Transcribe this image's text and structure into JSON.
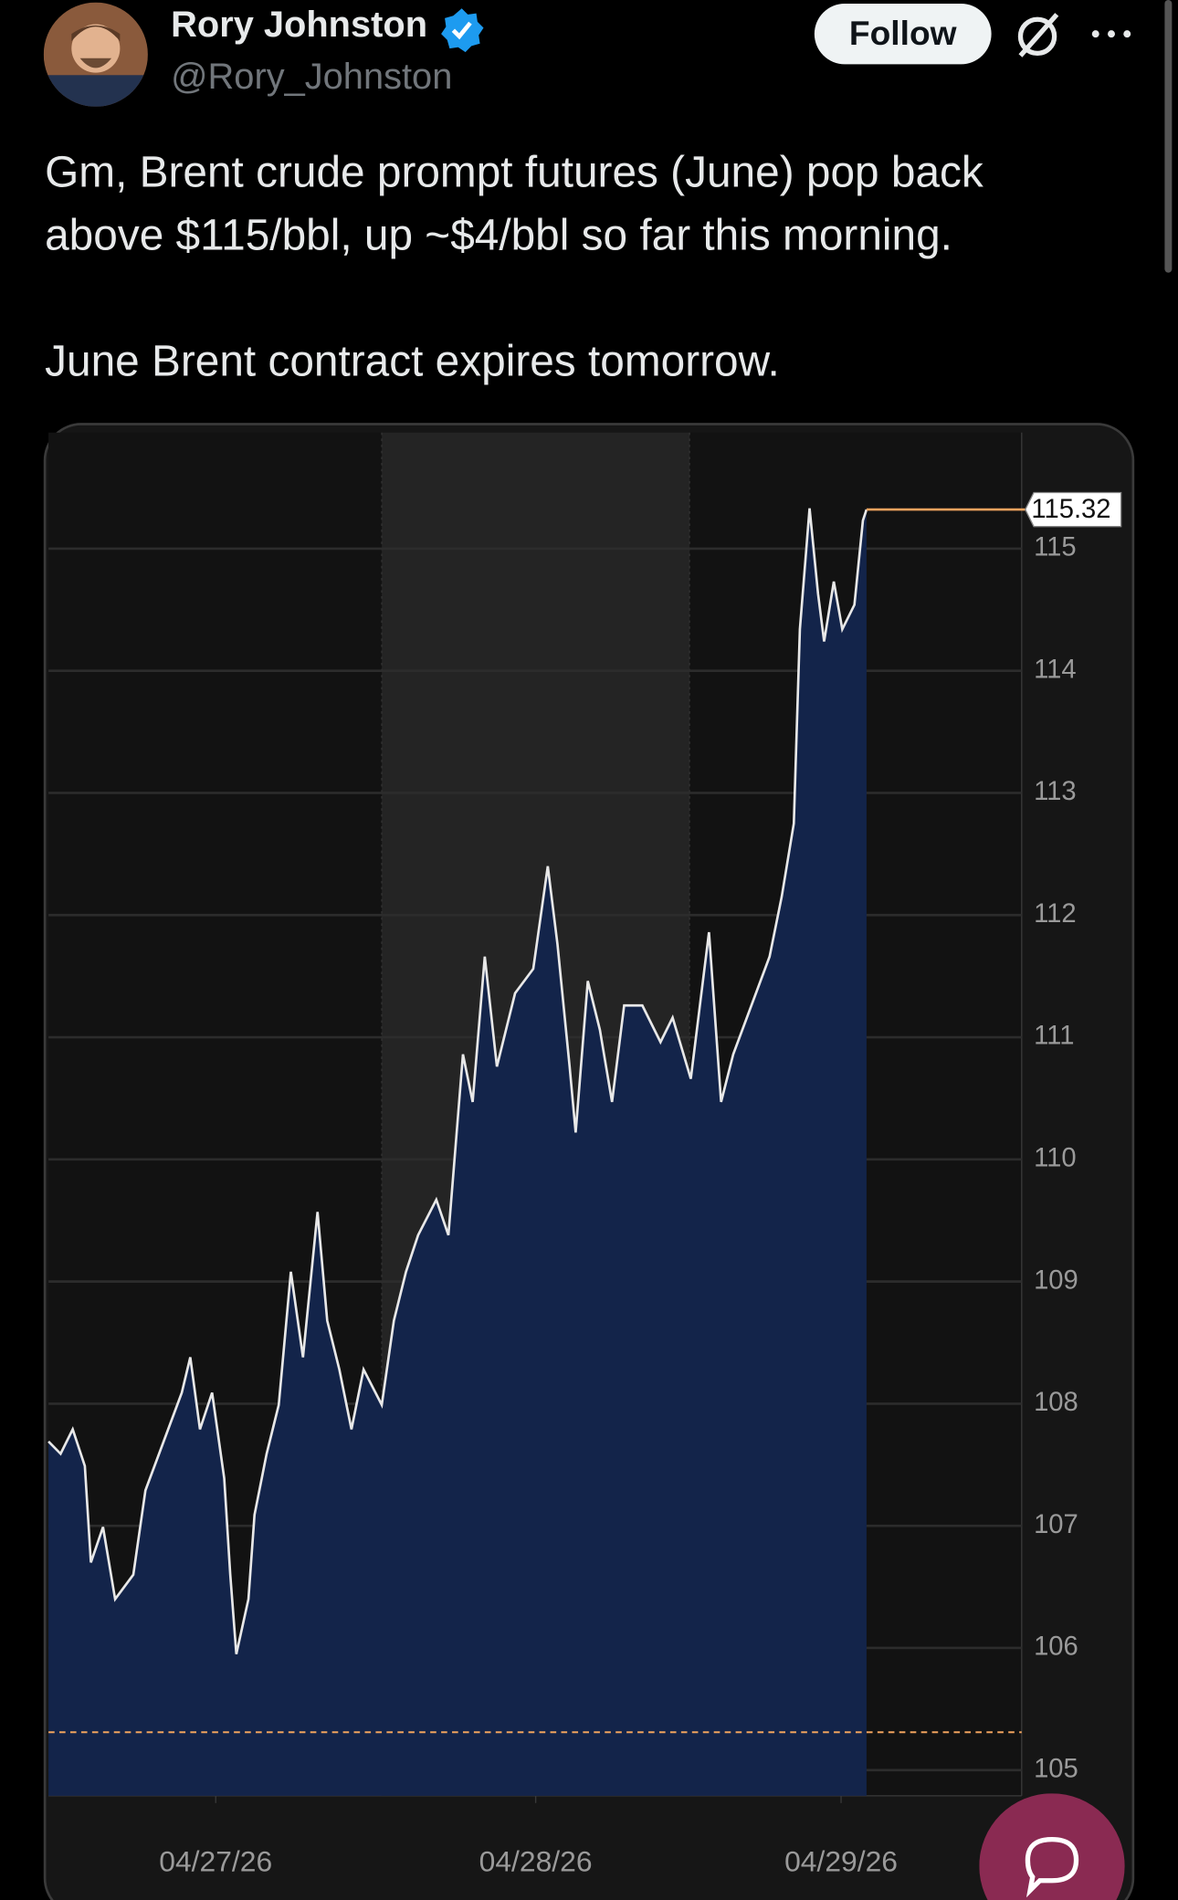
{
  "author": {
    "name": "Rory Johnston",
    "handle": "@Rory_Johnston"
  },
  "actions": {
    "follow": "Follow"
  },
  "tweet": {
    "lines": [
      "Gm, Brent crude prompt futures (June) pop back",
      "above $115/bbl, up ~$4/bbl so far this morning.",
      "June Brent contract expires tomorrow."
    ]
  },
  "chart_data": {
    "type": "area",
    "x": [
      0,
      2,
      4,
      6,
      7,
      9,
      11,
      14,
      16,
      19,
      22,
      23.4,
      25,
      27,
      29,
      30,
      31,
      33,
      34,
      36,
      38,
      40,
      42,
      44.4,
      46,
      48,
      50,
      52,
      55,
      57,
      59,
      61,
      64,
      66,
      68.4,
      70,
      72,
      74,
      77,
      80,
      82.4,
      84,
      86,
      87,
      89,
      91,
      93,
      95,
      98,
      101,
      103,
      106,
      109,
      111,
      113,
      116,
      119,
      121,
      123,
      124,
      125.6,
      127,
      128,
      129.6,
      131,
      133,
      134.4,
      135
    ],
    "values": [
      107.69,
      107.59,
      107.79,
      107.49,
      106.7,
      106.99,
      106.4,
      106.6,
      107.29,
      107.69,
      108.09,
      108.38,
      107.79,
      108.09,
      107.39,
      106.6,
      105.95,
      106.4,
      107.09,
      107.59,
      107.99,
      109.08,
      108.38,
      109.57,
      108.68,
      108.28,
      107.79,
      108.28,
      107.99,
      108.68,
      109.08,
      109.38,
      109.67,
      109.38,
      110.86,
      110.47,
      111.66,
      110.76,
      111.36,
      111.56,
      112.4,
      111.76,
      110.76,
      110.22,
      111.46,
      111.06,
      110.47,
      111.26,
      111.26,
      110.96,
      111.16,
      110.66,
      111.86,
      110.47,
      110.86,
      111.26,
      111.66,
      112.15,
      112.75,
      114.34,
      115.33,
      114.63,
      114.24,
      114.73,
      114.34,
      114.54,
      115.23,
      115.32
    ],
    "line_color": "#e8e8e8",
    "fill_color": "#13244a",
    "last_value": 115.32,
    "last_value_color": "#f0a35e",
    "reference_line": 105.31,
    "session_band": [
      55,
      105.8
    ],
    "xlim": [
      0,
      160.6
    ],
    "xticks": [
      {
        "value": 27.6,
        "label": "04/27/26"
      },
      {
        "value": 80.4,
        "label": "04/28/26"
      },
      {
        "value": 130.8,
        "label": "04/29/26"
      }
    ],
    "ylim": [
      104.79,
      115.95
    ],
    "yticks": [
      105,
      106,
      107,
      108,
      109,
      110,
      111,
      112,
      113,
      114,
      115
    ],
    "grid": true
  }
}
